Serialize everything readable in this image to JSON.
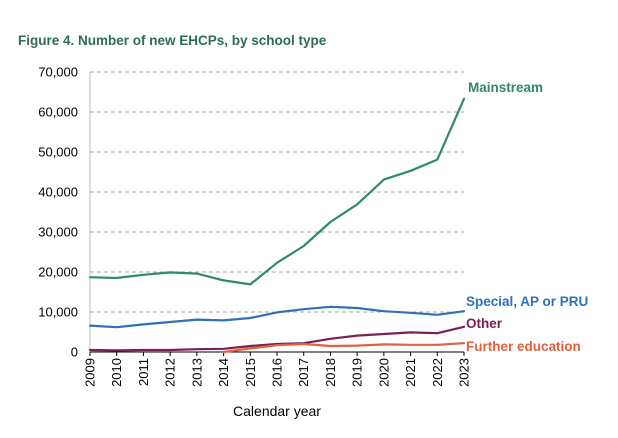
{
  "chart_data": {
    "type": "line",
    "title": "Figure 4. Number of new EHCPs, by school type",
    "xlabel": "Calendar year",
    "ylabel": "",
    "x": [
      2009,
      2010,
      2011,
      2012,
      2013,
      2014,
      2015,
      2016,
      2017,
      2018,
      2019,
      2020,
      2021,
      2022,
      2023
    ],
    "ylim": [
      0,
      70000
    ],
    "yticks": [
      0,
      10000,
      20000,
      30000,
      40000,
      50000,
      60000,
      70000
    ],
    "ytick_labels": [
      "0",
      "10,000",
      "20,000",
      "30,000",
      "40,000",
      "50,000",
      "60,000",
      "70,000"
    ],
    "grid": "horizontal dashed",
    "legend": "direct labels at line ends",
    "series": [
      {
        "name": "Mainstream",
        "color": "#2e8b6a",
        "values": [
          18700,
          18500,
          19300,
          19900,
          19600,
          17900,
          16900,
          22300,
          26500,
          32500,
          36900,
          43100,
          45300,
          48100,
          63300
        ]
      },
      {
        "name": "Special, AP or PRU",
        "color": "#3070b8",
        "values": [
          6600,
          6200,
          6900,
          7500,
          8100,
          7900,
          8500,
          9900,
          10700,
          11300,
          11000,
          10200,
          9800,
          9300,
          10200
        ]
      },
      {
        "name": "Other",
        "color": "#7b2052",
        "values": [
          500,
          400,
          500,
          500,
          700,
          800,
          1500,
          2000,
          2200,
          3300,
          4100,
          4500,
          4900,
          4700,
          6300
        ]
      },
      {
        "name": "Further education",
        "color": "#e06040",
        "values": [
          null,
          null,
          null,
          null,
          null,
          0,
          900,
          1700,
          2000,
          1500,
          1600,
          1900,
          1800,
          1800,
          2200
        ]
      }
    ]
  }
}
